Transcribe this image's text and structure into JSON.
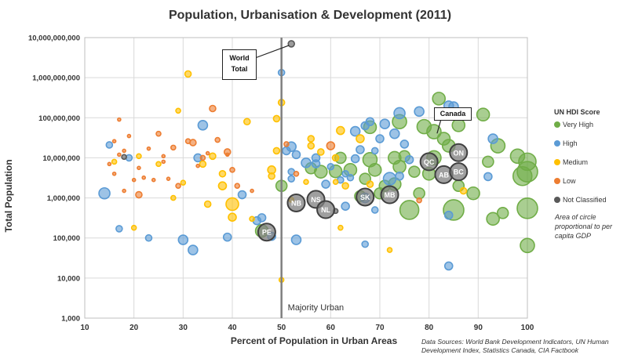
{
  "chart_data": {
    "type": "scatter",
    "title": "Population, Urbanisation & Development (2011)",
    "xlabel": "Percent of Population in Urban Areas",
    "ylabel": "Total Population",
    "xlim": [
      10,
      100
    ],
    "ylim": [
      1000,
      10000000000
    ],
    "y_scale": "log",
    "x_ticks": [
      "10",
      "20",
      "30",
      "40",
      "50",
      "60",
      "70",
      "80",
      "90",
      "100"
    ],
    "y_ticks": [
      "1,000",
      "10,000",
      "100,000",
      "1,000,000",
      "10,000,000",
      "100,000,000",
      "1,000,000,000",
      "10,000,000,000"
    ],
    "grid": true,
    "legend_position": "right",
    "legend": {
      "title": "UN HDI Score",
      "items": [
        {
          "label": "Very High",
          "color": "#70ad47"
        },
        {
          "label": "High",
          "color": "#5b9bd5"
        },
        {
          "label": "Medium",
          "color": "#ffc000"
        },
        {
          "label": "Low",
          "color": "#ed7d31"
        },
        {
          "label": "Not Classified",
          "color": "#595959"
        }
      ]
    },
    "size_note": "Area of circle proportional to per capita GDP",
    "source": "Data Sources: World Bank Development Indicators, UN Human Development Index, Statistics Canada, CIA Factbook",
    "reference_line": {
      "x": 50,
      "label": "Majority Urban"
    },
    "annotations": [
      {
        "text": "World Total",
        "x": 52,
        "y": 7000000000
      },
      {
        "text": "Canada",
        "x": 81,
        "y": 34000000
      }
    ],
    "series": [
      {
        "name": "Very High",
        "color": "#70ad47",
        "points": [
          [
            82,
            300000000,
            8
          ],
          [
            79,
            60000000,
            9
          ],
          [
            81,
            45000000,
            9
          ],
          [
            83,
            30000000,
            8
          ],
          [
            86,
            65000000,
            8
          ],
          [
            91,
            120000000,
            8
          ],
          [
            94,
            20000000,
            9
          ],
          [
            92,
            8000000,
            7
          ],
          [
            98,
            11000000,
            9
          ],
          [
            99,
            3500000,
            12
          ],
          [
            100,
            4500000,
            13
          ],
          [
            100,
            8000000,
            11
          ],
          [
            100,
            550000,
            13
          ],
          [
            100,
            65000,
            9
          ],
          [
            93,
            300000,
            8
          ],
          [
            95,
            420000,
            7
          ],
          [
            89,
            1300000,
            8
          ],
          [
            85,
            500000,
            13
          ],
          [
            78,
            1300000,
            7
          ],
          [
            76,
            500000,
            12
          ],
          [
            73,
            2200000,
            8
          ],
          [
            70,
            1300000,
            7
          ],
          [
            71,
            2000000,
            7
          ],
          [
            73,
            10000000,
            8
          ],
          [
            75,
            11000000,
            7
          ],
          [
            74,
            6000000,
            8
          ],
          [
            74,
            80000000,
            9
          ],
          [
            77,
            4500000,
            7
          ],
          [
            69,
            5000000,
            8
          ],
          [
            68,
            9000000,
            9
          ],
          [
            68,
            58000000,
            8
          ],
          [
            67,
            3000000,
            7
          ],
          [
            64,
            5000000,
            8
          ],
          [
            62,
            10000000,
            7
          ],
          [
            61,
            4600000,
            8
          ],
          [
            56,
            5500000,
            7
          ],
          [
            58,
            4500000,
            8
          ],
          [
            66,
            1100000,
            7
          ],
          [
            50,
            2000000,
            7
          ],
          [
            46,
            150000,
            8
          ],
          [
            80,
            4000000,
            8
          ],
          [
            81,
            10000000,
            9
          ],
          [
            86,
            2000000,
            7
          ],
          [
            84,
            20000000,
            8
          ]
        ]
      },
      {
        "name": "High",
        "color": "#5b9bd5",
        "points": [
          [
            50,
            1340000000,
            4
          ],
          [
            84,
            200000000,
            6
          ],
          [
            74,
            130000000,
            7
          ],
          [
            71,
            70000000,
            6
          ],
          [
            78,
            143000000,
            6
          ],
          [
            85,
            190000000,
            6
          ],
          [
            68,
            80000000,
            5
          ],
          [
            67,
            63000000,
            5
          ],
          [
            65,
            46000000,
            6
          ],
          [
            73,
            40000000,
            6
          ],
          [
            70,
            30000000,
            5
          ],
          [
            75,
            22000000,
            5
          ],
          [
            66,
            16000000,
            5
          ],
          [
            69,
            15000000,
            4
          ],
          [
            65,
            9500000,
            5
          ],
          [
            76,
            9000000,
            5
          ],
          [
            60,
            6000000,
            4
          ],
          [
            63,
            4000000,
            4
          ],
          [
            55,
            7500000,
            6
          ],
          [
            57,
            7100000,
            5
          ],
          [
            62,
            2800000,
            4
          ],
          [
            64,
            3200000,
            4
          ],
          [
            67,
            1000000,
            6
          ],
          [
            69,
            500000,
            4
          ],
          [
            72,
            3000000,
            8
          ],
          [
            74,
            3500000,
            5
          ],
          [
            84,
            370000,
            5
          ],
          [
            93,
            30000000,
            6
          ],
          [
            92,
            3400000,
            5
          ],
          [
            84,
            20000,
            5
          ],
          [
            67,
            70000,
            4
          ],
          [
            53,
            90000,
            6
          ],
          [
            52,
            4500000,
            4
          ],
          [
            52,
            3000000,
            4
          ],
          [
            51,
            15000000,
            5
          ],
          [
            52,
            19000000,
            6
          ],
          [
            53,
            12000000,
            5
          ],
          [
            48,
            110000,
            5
          ],
          [
            46,
            320000,
            5
          ],
          [
            45,
            270000,
            5
          ],
          [
            42,
            1200000,
            5
          ],
          [
            39,
            105000,
            5
          ],
          [
            34,
            65000000,
            6
          ],
          [
            33,
            10000000,
            5
          ],
          [
            30,
            90000,
            6
          ],
          [
            32,
            50000,
            6
          ],
          [
            15,
            21000000,
            4
          ],
          [
            14,
            1300000,
            7
          ],
          [
            17,
            170000,
            4
          ],
          [
            23,
            100000,
            4
          ],
          [
            19,
            10000000,
            4
          ],
          [
            63,
            620000,
            5
          ],
          [
            59,
            2200000,
            5
          ],
          [
            57,
            10000000,
            5
          ]
        ]
      },
      {
        "name": "Medium",
        "color": "#ffc000",
        "points": [
          [
            31,
            1240000000,
            4
          ],
          [
            50,
            240000000,
            4
          ],
          [
            49,
            95000000,
            4
          ],
          [
            43,
            80000000,
            4
          ],
          [
            29,
            150000000,
            3
          ],
          [
            56,
            30000000,
            4
          ],
          [
            62,
            48000000,
            5
          ],
          [
            48,
            5000000,
            5
          ],
          [
            48,
            3500000,
            4
          ],
          [
            49,
            15000000,
            4
          ],
          [
            40,
            700000,
            8
          ],
          [
            40,
            330000,
            5
          ],
          [
            38,
            2000000,
            5
          ],
          [
            35,
            700000,
            4
          ],
          [
            30,
            2400000,
            3
          ],
          [
            28,
            1000000,
            3
          ],
          [
            36,
            11000000,
            4
          ],
          [
            38,
            4000000,
            4
          ],
          [
            58,
            14000000,
            4
          ],
          [
            61,
            10000000,
            4
          ],
          [
            63,
            2000000,
            4
          ],
          [
            66,
            30000000,
            5
          ],
          [
            62,
            180000,
            3
          ],
          [
            72,
            50000,
            3
          ],
          [
            50,
            9000,
            3
          ],
          [
            55,
            2500000,
            3
          ],
          [
            61,
            2500000,
            3
          ],
          [
            56,
            20000000,
            4
          ],
          [
            68,
            2200000,
            4
          ],
          [
            87,
            1500000,
            4
          ],
          [
            25,
            7000000,
            3
          ],
          [
            20,
            180000,
            3
          ],
          [
            16,
            8000000,
            3
          ],
          [
            21,
            11000000,
            3
          ],
          [
            34,
            7000000,
            4
          ],
          [
            44,
            300000,
            3
          ],
          [
            52,
            900000,
            3
          ]
        ]
      },
      {
        "name": "Low",
        "color": "#ed7d31",
        "points": [
          [
            36,
            170000000,
            4
          ],
          [
            32,
            24000000,
            4
          ],
          [
            39,
            14000000,
            4
          ],
          [
            34,
            10000000,
            3
          ],
          [
            31,
            26000000,
            3
          ],
          [
            28,
            18000000,
            3
          ],
          [
            25,
            40000000,
            3
          ],
          [
            19,
            35000000,
            2
          ],
          [
            17,
            90000000,
            2
          ],
          [
            16,
            26000000,
            2
          ],
          [
            18,
            15000000,
            2
          ],
          [
            21,
            5600000,
            2
          ],
          [
            26,
            8000000,
            2
          ],
          [
            27,
            3000000,
            2
          ],
          [
            29,
            2000000,
            3
          ],
          [
            22,
            3200000,
            2
          ],
          [
            18,
            1500000,
            2
          ],
          [
            21,
            1200000,
            4
          ],
          [
            16,
            4000000,
            2
          ],
          [
            17,
            12000000,
            2
          ],
          [
            23,
            17000000,
            2
          ],
          [
            26,
            11000000,
            2
          ],
          [
            33,
            6300000,
            2
          ],
          [
            39,
            12000000,
            2
          ],
          [
            40,
            5000000,
            3
          ],
          [
            41,
            2000000,
            3
          ],
          [
            44,
            1500000,
            2
          ],
          [
            60,
            20000000,
            5
          ],
          [
            51,
            22000000,
            3
          ],
          [
            53,
            4000000,
            3
          ],
          [
            78,
            870000,
            3
          ],
          [
            35,
            13000000,
            2
          ],
          [
            37,
            28000000,
            3
          ],
          [
            24,
            2800000,
            2
          ],
          [
            20,
            2800000,
            2
          ],
          [
            15,
            7000000,
            2
          ]
        ]
      },
      {
        "name": "Not Classified",
        "color": "#595959",
        "points": [
          [
            52,
            7000000000,
            4
          ],
          [
            18,
            10500000,
            3
          ],
          [
            61,
            470000,
            3
          ]
        ]
      }
    ],
    "canadian_provinces": [
      {
        "label": "QC",
        "x": 80,
        "y": 8000000
      },
      {
        "label": "ON",
        "x": 86,
        "y": 13500000
      },
      {
        "label": "AB",
        "x": 83,
        "y": 3800000
      },
      {
        "label": "BC",
        "x": 86,
        "y": 4500000
      },
      {
        "label": "SK",
        "x": 67,
        "y": 1050000
      },
      {
        "label": "MB",
        "x": 72,
        "y": 1200000
      },
      {
        "label": "NB",
        "x": 53,
        "y": 750000
      },
      {
        "label": "NS",
        "x": 57,
        "y": 920000
      },
      {
        "label": "NL",
        "x": 59,
        "y": 510000
      },
      {
        "label": "PE",
        "x": 47,
        "y": 140000
      }
    ]
  }
}
